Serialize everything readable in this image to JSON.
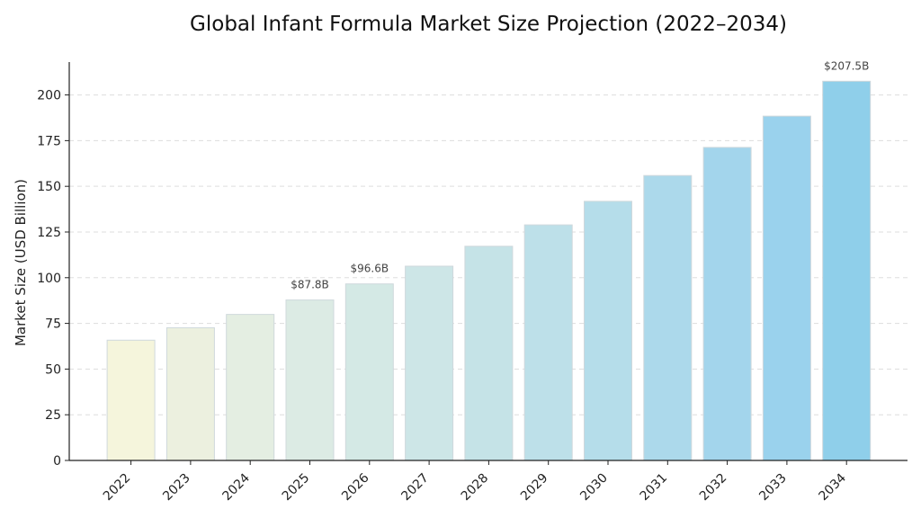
{
  "chart_data": {
    "type": "bar",
    "title": "Global Infant Formula Market Size Projection (2022–2034)",
    "xlabel": "",
    "ylabel": "Market Size (USD Billion)",
    "ylim": [
      0,
      218
    ],
    "yticks": [
      0,
      25,
      50,
      75,
      100,
      125,
      150,
      175,
      200
    ],
    "grid": "horizontal-dashed",
    "categories": [
      "2022",
      "2023",
      "2024",
      "2025",
      "2026",
      "2027",
      "2028",
      "2029",
      "2030",
      "2031",
      "2032",
      "2033",
      "2034"
    ],
    "values": [
      65.8,
      72.6,
      79.9,
      87.8,
      96.6,
      106.3,
      117.2,
      128.9,
      141.8,
      155.9,
      171.3,
      188.4,
      207.5
    ],
    "bar_colors": [
      "#f5f5dc",
      "#ecf0df",
      "#e4eee2",
      "#dcebe4",
      "#d4e9e5",
      "#cde6e7",
      "#c5e3e7",
      "#bde0e9",
      "#b5ddea",
      "#acd9eb",
      "#a3d5ec",
      "#9ad2ed",
      "#8fcfea"
    ],
    "data_labels": [
      {
        "category": "2025",
        "text": "$87.8B"
      },
      {
        "category": "2026",
        "text": "$96.6B"
      },
      {
        "category": "2034",
        "text": "$207.5B"
      }
    ]
  }
}
